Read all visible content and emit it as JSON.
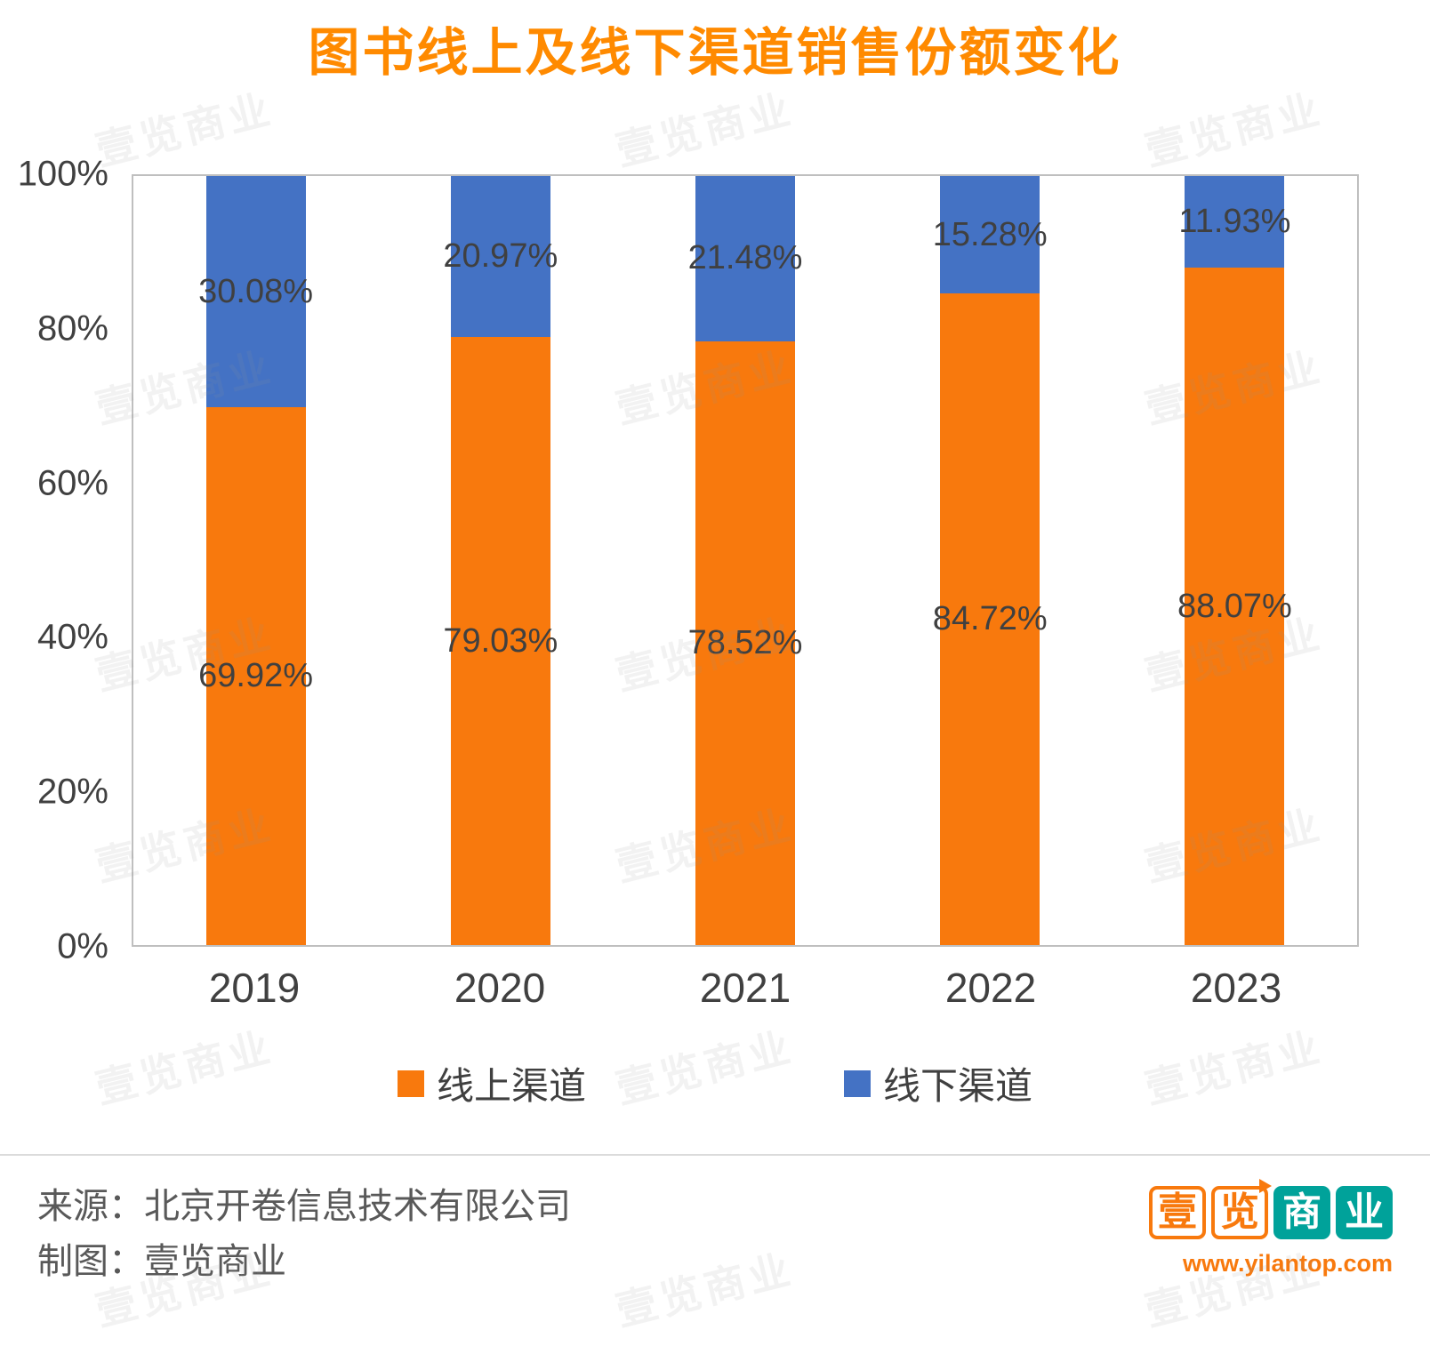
{
  "page": {
    "watermark_text": "壹览商业"
  },
  "chart_data": {
    "type": "bar",
    "stacked": true,
    "title": "图书线上及线下渠道销售份额变化",
    "categories": [
      "2019",
      "2020",
      "2021",
      "2022",
      "2023"
    ],
    "series": [
      {
        "name": "线上渠道",
        "color": "#F8790D",
        "values": [
          69.92,
          79.03,
          78.52,
          84.72,
          88.07
        ],
        "labels": [
          "69.92%",
          "79.03%",
          "78.52%",
          "84.72%",
          "88.07%"
        ]
      },
      {
        "name": "线下渠道",
        "color": "#4472C4",
        "values": [
          30.08,
          20.97,
          21.48,
          15.28,
          11.93
        ],
        "labels": [
          "30.08%",
          "20.97%",
          "21.48%",
          "15.28%",
          "11.93%"
        ]
      }
    ],
    "ylim": [
      0,
      100
    ],
    "yticks": [
      {
        "label": "0%",
        "value": 0
      },
      {
        "label": "20%",
        "value": 20
      },
      {
        "label": "40%",
        "value": 40
      },
      {
        "label": "60%",
        "value": 60
      },
      {
        "label": "80%",
        "value": 80
      },
      {
        "label": "100%",
        "value": 100
      }
    ],
    "grid": false,
    "legend_position": "bottom"
  },
  "footer": {
    "source_line": "来源：北京开卷信息技术有限公司",
    "credit_line": "制图：壹览商业",
    "logo_text": "壹览商业",
    "website": "www.yilantop.com"
  },
  "colors": {
    "title": "#FF8A00",
    "online": "#F8790D",
    "offline": "#4472C4",
    "value_label": "#404040",
    "axis_text": "#404040",
    "plot_frame": "#BFBFBF",
    "divider": "#DBDBDB",
    "footer_text": "#595959",
    "logo_orange": "#F8790D",
    "logo_teal": "#00A29A"
  }
}
